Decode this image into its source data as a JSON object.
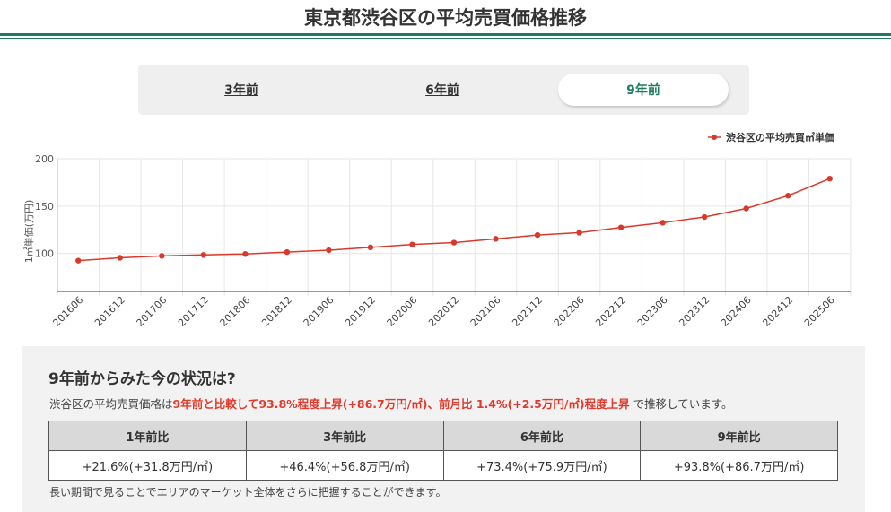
{
  "header": {
    "title": "東京都渋谷区の平均売買価格推移"
  },
  "tabs": [
    {
      "label": "3年前",
      "active": false
    },
    {
      "label": "6年前",
      "active": false
    },
    {
      "label": "9年前",
      "active": true
    }
  ],
  "chart_data": {
    "type": "line",
    "title": "",
    "xlabel": "",
    "ylabel": "1㎡単価(万円)",
    "ylim": [
      60,
      200
    ],
    "yticks": [
      100,
      150,
      200
    ],
    "legend": "top-right",
    "grid": true,
    "categories": [
      "201606",
      "201612",
      "201706",
      "201712",
      "201806",
      "201812",
      "201906",
      "201912",
      "202006",
      "202012",
      "202106",
      "202112",
      "202206",
      "202212",
      "202306",
      "202312",
      "202406",
      "202412",
      "202506"
    ],
    "series": [
      {
        "name": "渋谷区の平均売買㎡単価",
        "color": "#d9392b",
        "values": [
          92.5,
          95.5,
          97.5,
          98.5,
          99.5,
          101.5,
          103.5,
          106.5,
          109.5,
          111.5,
          115.5,
          119.5,
          122.0,
          127.5,
          132.5,
          138.5,
          147.5,
          161.0,
          179.0
        ]
      }
    ]
  },
  "summary": {
    "heading": "9年前からみた今の状況は?",
    "text_prefix": "渋谷区の平均売買価格は",
    "text_highlight": "9年前と比較して93.8%程度上昇(+86.7万円/㎡)、前月比 1.4%(+2.5万円/㎡)程度上昇",
    "text_suffix": " で推移しています。",
    "table": {
      "headers": [
        "1年前比",
        "3年前比",
        "6年前比",
        "9年前比"
      ],
      "values": [
        "+21.6%(+31.8万円/㎡)",
        "+46.4%(+56.8万円/㎡)",
        "+73.4%(+75.9万円/㎡)",
        "+93.8%(+86.7万円/㎡)"
      ]
    },
    "note": "長い期間で見ることでエリアのマーケット全体をさらに把握することができます。"
  }
}
